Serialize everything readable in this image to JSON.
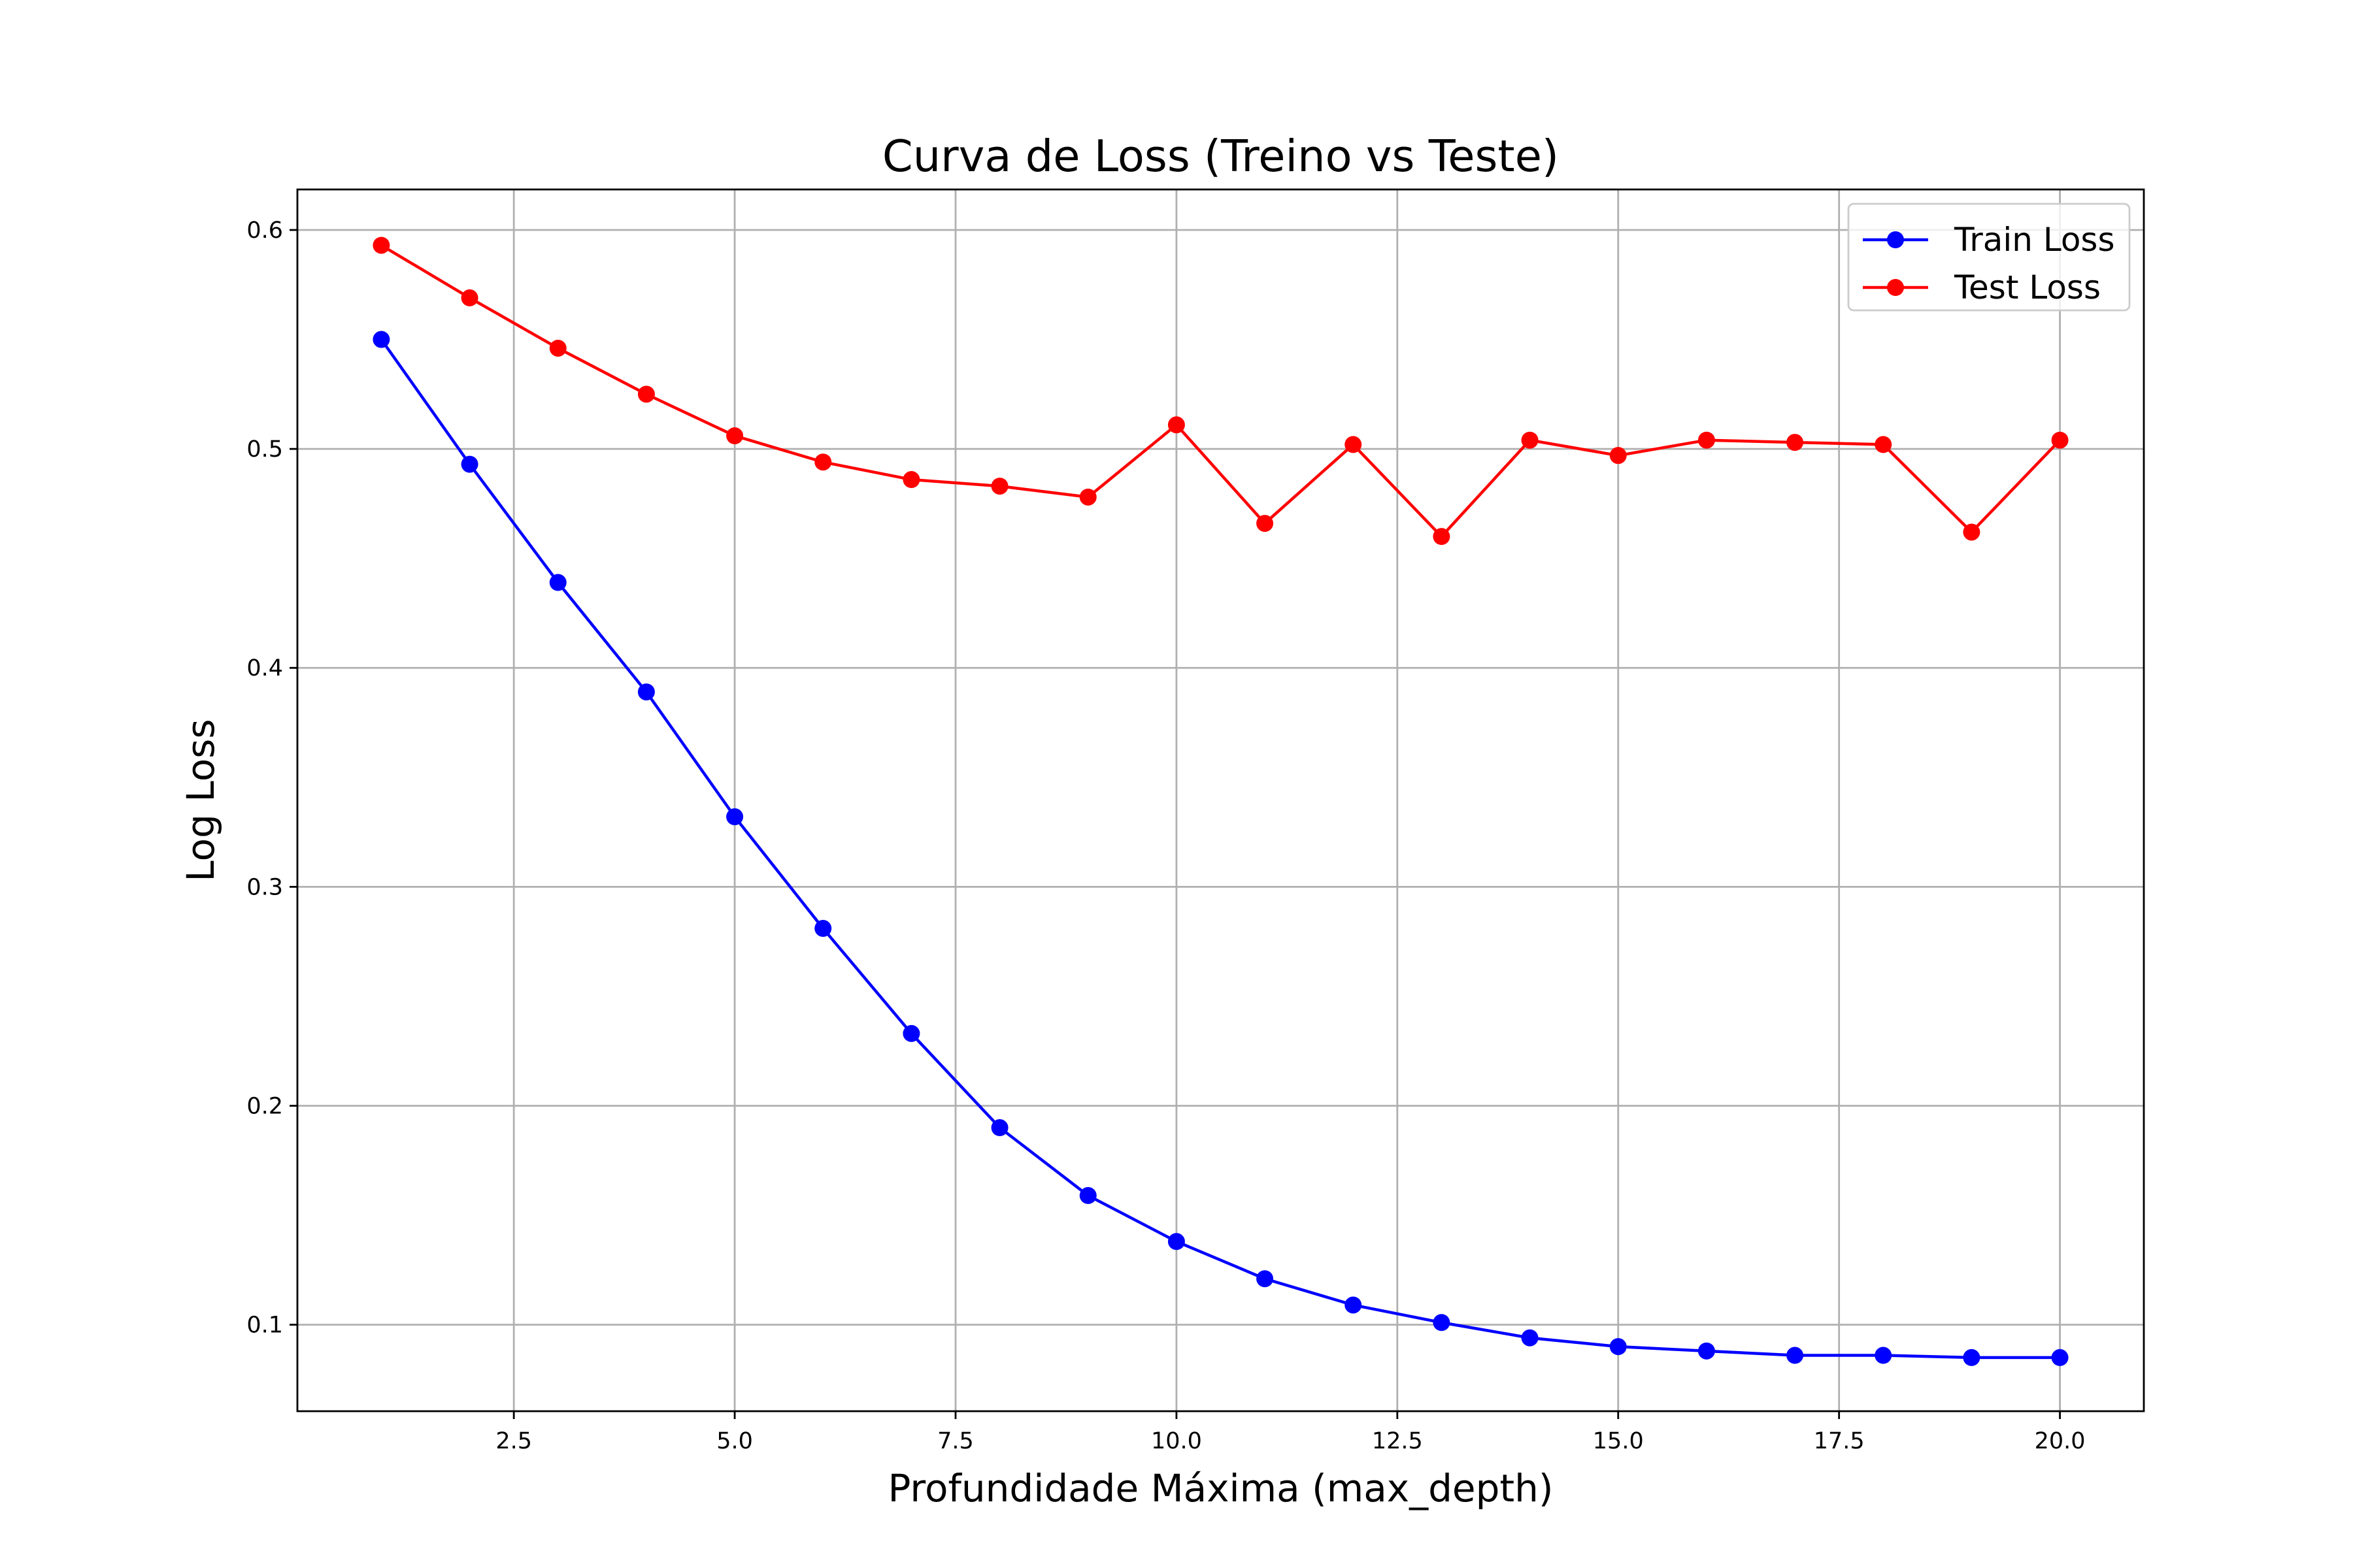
{
  "chart_data": {
    "type": "line",
    "title": "Curva de Loss (Treino vs Teste)",
    "xlabel": "Profundidade Máxima (max_depth)",
    "ylabel": "Log Loss",
    "xlim": [
      0.05,
      20.95
    ],
    "ylim": [
      0.0605,
      0.6185
    ],
    "x_ticks": [
      2.5,
      5.0,
      7.5,
      10.0,
      12.5,
      15.0,
      17.5,
      20.0
    ],
    "x_tick_labels": [
      "2.5",
      "5.0",
      "7.5",
      "10.0",
      "12.5",
      "15.0",
      "17.5",
      "20.0"
    ],
    "y_ticks": [
      0.1,
      0.2,
      0.3,
      0.4,
      0.5,
      0.6
    ],
    "y_tick_labels": [
      "0.1",
      "0.2",
      "0.3",
      "0.4",
      "0.5",
      "0.6"
    ],
    "grid": true,
    "legend_position": "top-right",
    "x": [
      1,
      2,
      3,
      4,
      5,
      6,
      7,
      8,
      9,
      10,
      11,
      12,
      13,
      14,
      15,
      16,
      17,
      18,
      19,
      20
    ],
    "series": [
      {
        "name": "Train Loss",
        "color": "#0000ff",
        "marker": "circle",
        "values": [
          0.55,
          0.493,
          0.439,
          0.389,
          0.332,
          0.281,
          0.233,
          0.19,
          0.159,
          0.138,
          0.121,
          0.109,
          0.101,
          0.094,
          0.09,
          0.088,
          0.086,
          0.086,
          0.085,
          0.085
        ]
      },
      {
        "name": "Test Loss",
        "color": "#ff0000",
        "marker": "circle",
        "values": [
          0.593,
          0.569,
          0.546,
          0.525,
          0.506,
          0.494,
          0.486,
          0.483,
          0.478,
          0.511,
          0.466,
          0.502,
          0.46,
          0.504,
          0.497,
          0.504,
          0.503,
          0.502,
          0.462,
          0.504
        ]
      }
    ]
  }
}
